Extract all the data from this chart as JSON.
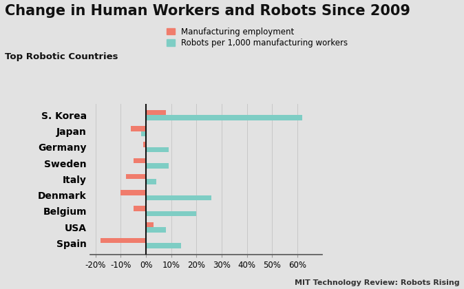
{
  "title": "Change in Human Workers and Robots Since 2009",
  "subtitle": "Top Robotic Countries",
  "source": "MIT Technology Review: Robots Rising",
  "legend_labels": [
    "Manufacturing employment",
    "Robots per 1,000 manufacturing workers"
  ],
  "countries": [
    "S. Korea",
    "Japan",
    "Germany",
    "Sweden",
    "Italy",
    "Denmark",
    "Belgium",
    "USA",
    "Spain"
  ],
  "employment_change": [
    8,
    -6,
    -1,
    -5,
    -8,
    -10,
    -5,
    3,
    -18
  ],
  "robots_change": [
    62,
    -2,
    9,
    9,
    4,
    26,
    20,
    8,
    14
  ],
  "employment_color": "#F07C6C",
  "robots_color": "#7ECDC4",
  "background_color": "#E2E2E2",
  "title_fontsize": 15,
  "axis_label_fontsize": 8.5,
  "country_fontsize": 10,
  "xlim": [
    -22,
    70
  ],
  "xticks": [
    -20,
    -10,
    0,
    10,
    20,
    30,
    40,
    50,
    60
  ],
  "xtick_labels": [
    "-20%",
    "-10%",
    "0%",
    "10%",
    "20%",
    "30%",
    "40%",
    "50%",
    "60%"
  ],
  "bar_height": 0.32,
  "zero_line_color": "#111111"
}
